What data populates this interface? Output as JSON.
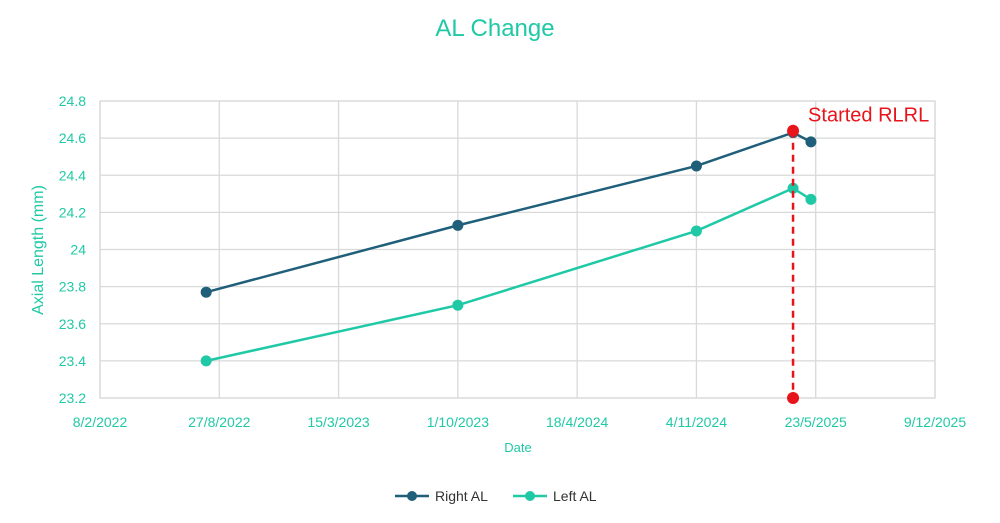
{
  "chart_data": {
    "type": "line",
    "title": "AL Change",
    "xlabel": "Date",
    "ylabel": "Axial Length  (mm)",
    "ylim": [
      23.2,
      24.8
    ],
    "yticks": [
      23.2,
      23.4,
      23.6,
      23.8,
      24,
      24.2,
      24.4,
      24.6,
      24.8
    ],
    "ytick_labels": [
      "23.2",
      "23.4",
      "23.6",
      "23.8",
      "24",
      "24.2",
      "24.4",
      "24.6",
      "24.8"
    ],
    "xlim": [
      "2022-02-08",
      "2025-12-09"
    ],
    "xticks": [
      "2022-02-08",
      "2022-08-27",
      "2023-03-15",
      "2023-10-01",
      "2024-04-18",
      "2024-11-04",
      "2025-05-23",
      "2025-12-09"
    ],
    "xtick_labels": [
      "8/2/2022",
      "27/8/2022",
      "15/3/2023",
      "1/10/2023",
      "18/4/2024",
      "4/11/2024",
      "23/5/2025",
      "9/12/2025"
    ],
    "grid": true,
    "legend_position": "bottom",
    "series": [
      {
        "name": "Right AL",
        "color": "#1f5f7a",
        "x": [
          "2022-08-05",
          "2023-10-01",
          "2024-11-04",
          "2025-04-15",
          "2025-05-15"
        ],
        "values": [
          23.77,
          24.13,
          24.45,
          24.63,
          24.58
        ]
      },
      {
        "name": "Left AL",
        "color": "#20c9a6",
        "x": [
          "2022-08-05",
          "2023-10-01",
          "2024-11-04",
          "2025-04-15",
          "2025-05-15"
        ],
        "values": [
          23.4,
          23.7,
          24.1,
          24.33,
          24.27
        ]
      }
    ],
    "annotations": [
      {
        "text": "Started RLRL",
        "x": "2025-04-15",
        "y_range": [
          23.2,
          24.64
        ],
        "color": "#e8141b",
        "style": "dashed-vertical-line"
      }
    ]
  }
}
